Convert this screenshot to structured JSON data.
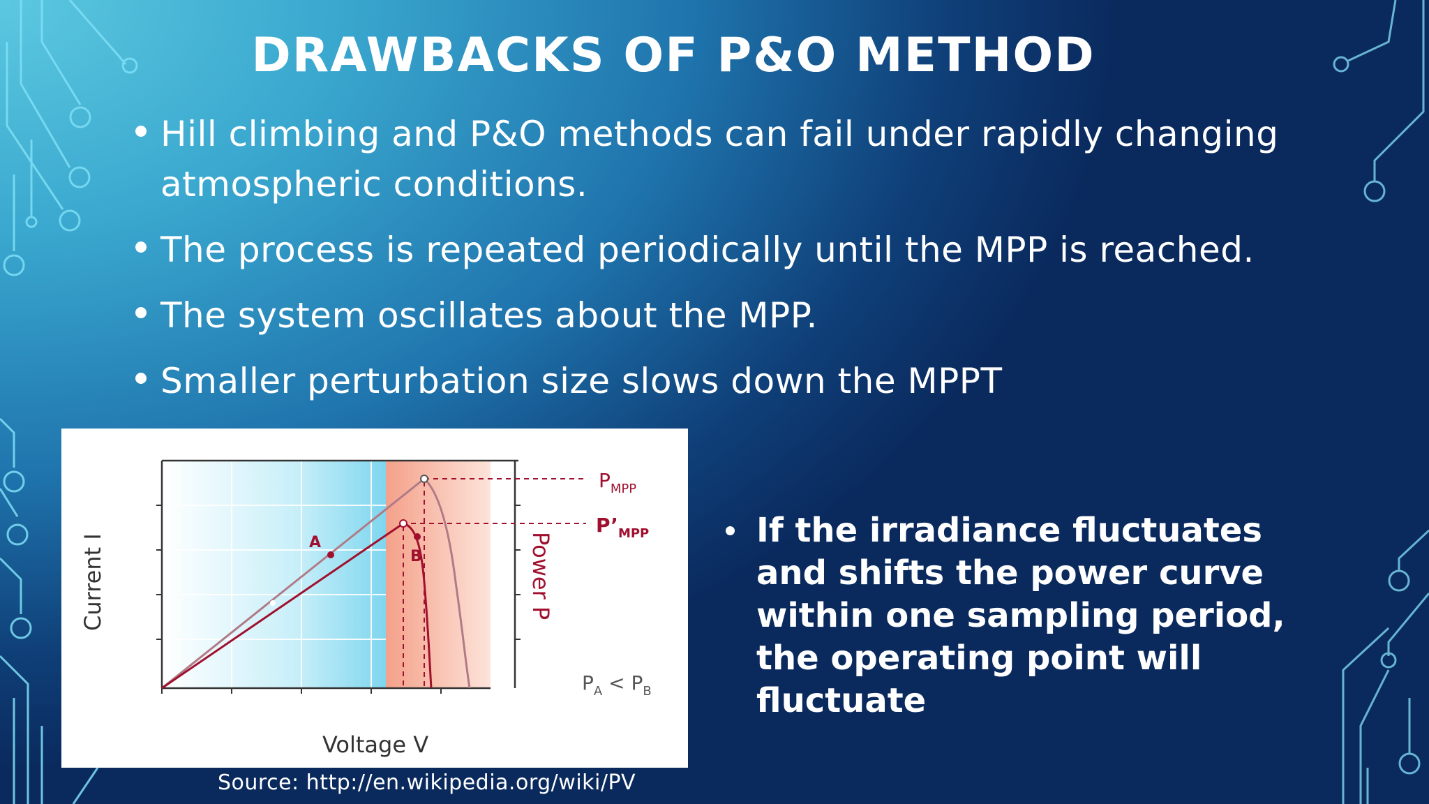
{
  "slide": {
    "title": "DRAWBACKS OF P&O METHOD",
    "bullets": [
      "Hill climbing and P&O methods can fail under rapidly changing atmospheric conditions.",
      "The process is repeated periodically until the MPP is reached.",
      "The system oscillates about the MPP.",
      "Smaller perturbation size slows down the MPPT"
    ],
    "side_bullet": "If the irradiance fluctuates and shifts the power curve within one sampling period, the operating point will fluctuate",
    "source": "Source: http://en.wikipedia.org/wiki/PV"
  },
  "figure": {
    "xlabel": "Voltage V",
    "ylabel_left": "Current I",
    "ylabel_right": "Power P",
    "label_a": "A",
    "label_b": "B",
    "p_mpp": "P",
    "p_mpp_sub": "MPP",
    "p_mpp_prime": "P’",
    "p_mpp_prime_sub": "MPP",
    "relation_pa": "P",
    "relation_pa_sub": "A",
    "relation_lt": " < ",
    "relation_pb": "P",
    "relation_pb_sub": "B",
    "colors": {
      "left_region": "#bfeaf6",
      "right_region": "#f7c3b2",
      "curve_high": "#b07a86",
      "curve_low": "#a0102e",
      "label_red": "#a0102e"
    }
  }
}
